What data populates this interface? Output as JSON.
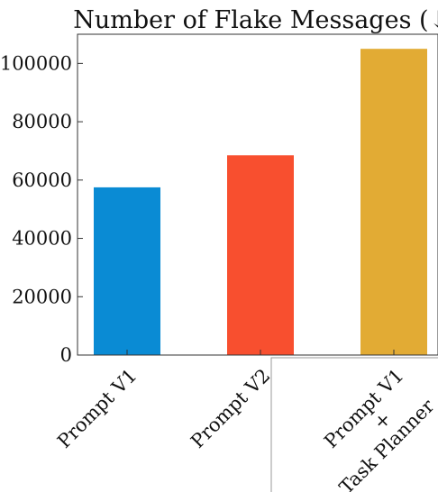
{
  "chart_data": {
    "type": "bar",
    "title": "Number of Flake Messages (↓)",
    "xlabel": "",
    "ylabel": "",
    "categories": [
      {
        "lines": [
          "Prompt V1"
        ]
      },
      {
        "lines": [
          "Prompt V2"
        ]
      },
      {
        "lines": [
          "Prompt V1",
          "+",
          "Task Planner"
        ]
      }
    ],
    "values": [
      57500,
      68500,
      105000
    ],
    "colors": [
      "#0a8bd4",
      "#f84f2f",
      "#e2ab34"
    ],
    "ylim": [
      0,
      110000
    ],
    "yticks": [
      0,
      20000,
      40000,
      60000,
      80000,
      100000
    ],
    "ytick_labels": [
      "0",
      "20000",
      "40000",
      "60000",
      "80000",
      "100000"
    ],
    "grid": false,
    "legend": "none"
  }
}
